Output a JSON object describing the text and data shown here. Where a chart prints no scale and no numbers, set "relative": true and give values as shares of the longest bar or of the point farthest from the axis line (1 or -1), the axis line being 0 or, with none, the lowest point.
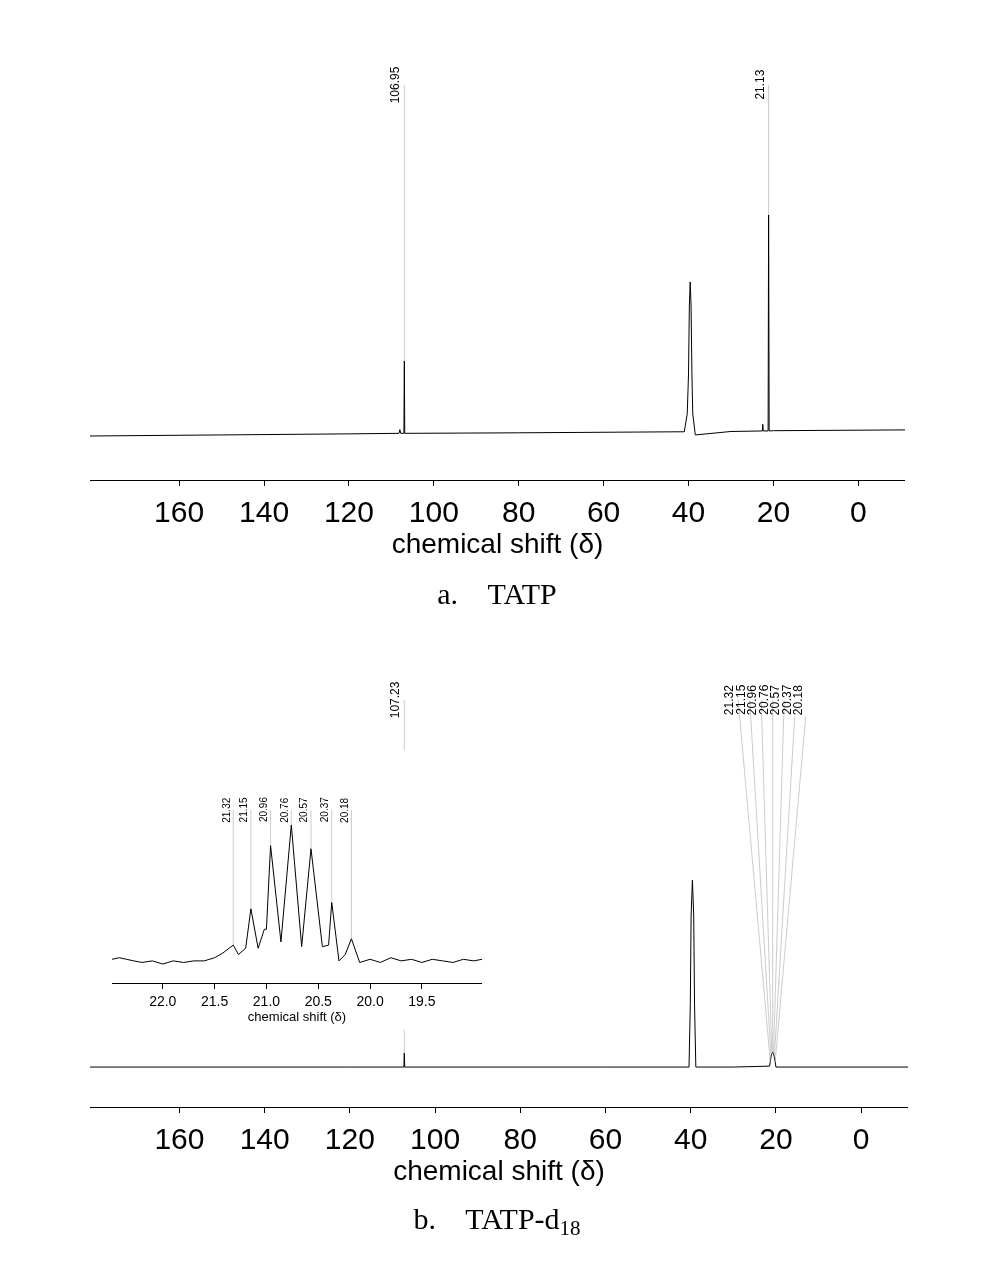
{
  "chart_data": [
    {
      "type": "line",
      "title": "a.    TATP",
      "xlabel": "chemical shift (δ)",
      "relative": true,
      "color": "#000000",
      "x": [
        181,
        150,
        120,
        108.2,
        108,
        107.8,
        107.05,
        106.95,
        106.85,
        80,
        41,
        40.3,
        40.0,
        39.8,
        39.6,
        39.4,
        39.2,
        39.0,
        38.4,
        30,
        22.6,
        22.5,
        22.4,
        21.25,
        21.13,
        21.0,
        20,
        -11
      ],
      "values": [
        0.166,
        0.17,
        0.174,
        0.176,
        0.19,
        0.176,
        0.176,
        0.449,
        0.176,
        0.178,
        0.182,
        0.25,
        0.4,
        0.66,
        0.747,
        0.66,
        0.4,
        0.25,
        0.17,
        0.183,
        0.185,
        0.21,
        0.185,
        0.185,
        1.0,
        0.185,
        0.186,
        0.189
      ],
      "xlim": [
        181,
        -11
      ],
      "xticks": [
        160,
        140,
        120,
        100,
        80,
        60,
        40,
        20,
        0
      ],
      "annotations": [
        {
          "text": "106.95",
          "x": 106.95,
          "y": 0.449
        },
        {
          "text": "21.13",
          "x": 21.13,
          "y": 1.0
        }
      ]
    },
    {
      "type": "line",
      "title": "b.    TATP-d$_{18}$",
      "xlabel": "chemical shift (δ)",
      "relative": true,
      "color": "#000000",
      "x": [
        181,
        120,
        107.33,
        107.23,
        107.13,
        60,
        40.4,
        40.1,
        39.9,
        39.6,
        39.3,
        39.1,
        38.8,
        30,
        21.5,
        21.32,
        21.15,
        20.96,
        20.76,
        20.57,
        20.37,
        20.18,
        20.0,
        -11
      ],
      "values": [
        0.176,
        0.176,
        0.176,
        0.238,
        0.176,
        0.176,
        0.176,
        0.45,
        0.846,
        1.0,
        0.846,
        0.45,
        0.176,
        0.176,
        0.18,
        0.2,
        0.22,
        0.235,
        0.242,
        0.235,
        0.22,
        0.2,
        0.176,
        0.176
      ],
      "xlim": [
        181,
        -11
      ],
      "xticks": [
        160,
        140,
        120,
        100,
        80,
        60,
        40,
        20,
        0
      ],
      "annotations": [
        {
          "text": "107.23",
          "x": 107.23,
          "y": 0.238
        },
        {
          "text": "21.32",
          "x": 21.32,
          "y": 0.2
        },
        {
          "text": "21.15",
          "x": 21.15,
          "y": 0.22
        },
        {
          "text": "20.96",
          "x": 20.96,
          "y": 0.235
        },
        {
          "text": "20.76",
          "x": 20.76,
          "y": 0.242
        },
        {
          "text": "20.57",
          "x": 20.57,
          "y": 0.235
        },
        {
          "text": "20.37",
          "x": 20.37,
          "y": 0.22
        },
        {
          "text": "20.18",
          "x": 20.18,
          "y": 0.2
        }
      ]
    },
    {
      "type": "line",
      "xlabel": "chemical shift (δ)",
      "relative": true,
      "color": "#000000",
      "x": [
        22.49,
        22.42,
        22.35,
        22.28,
        22.2,
        22.1,
        22.0,
        21.9,
        21.8,
        21.7,
        21.6,
        21.5,
        21.42,
        21.38,
        21.32,
        21.27,
        21.2,
        21.15,
        21.08,
        21.02,
        21.0,
        20.96,
        20.86,
        20.76,
        20.66,
        20.57,
        20.46,
        20.4,
        20.37,
        20.3,
        20.24,
        20.18,
        20.1,
        20.0,
        19.9,
        19.8,
        19.7,
        19.6,
        19.5,
        19.4,
        19.3,
        19.2,
        19.1,
        19.0,
        18.92
      ],
      "values": [
        0.15,
        0.16,
        0.15,
        0.14,
        0.13,
        0.14,
        0.12,
        0.14,
        0.13,
        0.14,
        0.14,
        0.16,
        0.19,
        0.21,
        0.24,
        0.18,
        0.22,
        0.47,
        0.22,
        0.34,
        0.34,
        0.87,
        0.26,
        1.0,
        0.23,
        0.85,
        0.23,
        0.24,
        0.51,
        0.14,
        0.18,
        0.28,
        0.13,
        0.15,
        0.13,
        0.16,
        0.14,
        0.15,
        0.13,
        0.15,
        0.14,
        0.13,
        0.15,
        0.14,
        0.15
      ],
      "xlim": [
        22.49,
        18.92
      ],
      "xticks": [
        {
          "value": 22,
          "label": "22.0"
        },
        21.5,
        {
          "value": 21,
          "label": "21.0"
        },
        20.5,
        {
          "value": 20,
          "label": "20.0"
        },
        19.5
      ],
      "annotations": [
        {
          "text": "21.32",
          "x": 21.32,
          "y": 0.24
        },
        {
          "text": "21.15",
          "x": 21.15,
          "y": 0.47
        },
        {
          "text": "20.96",
          "x": 20.96,
          "y": 0.87
        },
        {
          "text": "20.76",
          "x": 20.76,
          "y": 1.0
        },
        {
          "text": "20.57",
          "x": 20.57,
          "y": 0.85
        },
        {
          "text": "20.37",
          "x": 20.37,
          "y": 0.51
        },
        {
          "text": "20.18",
          "x": 20.18,
          "y": 0.28
        }
      ]
    }
  ]
}
